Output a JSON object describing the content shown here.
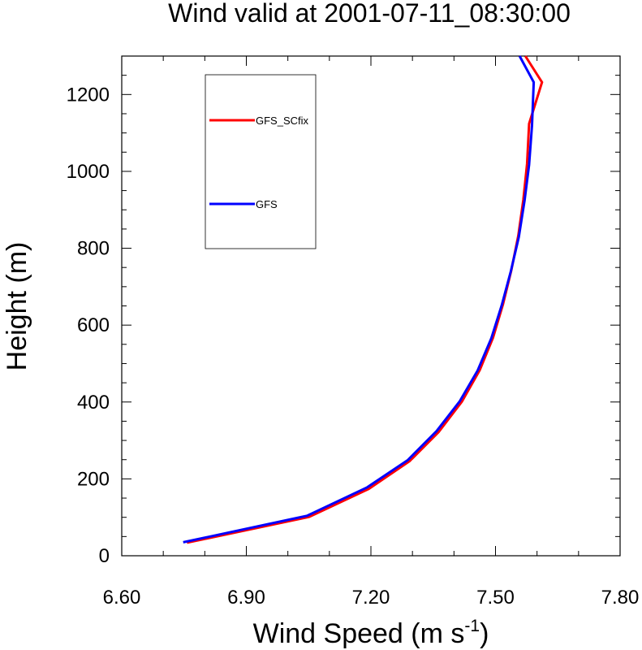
{
  "chart_data": {
    "type": "line",
    "title": "Wind valid at 2001-07-11_08:30:00",
    "xlabel_main": "Wind Speed (m s",
    "xlabel_sup": "-1",
    "xlabel_close": ")",
    "ylabel": "Height (m)",
    "xlim": [
      6.6,
      7.8
    ],
    "ylim": [
      0,
      1300
    ],
    "xticks": [
      6.6,
      6.9,
      7.2,
      7.5,
      7.8
    ],
    "xtick_labels": [
      "6.60",
      "6.90",
      "7.20",
      "7.50",
      "7.80"
    ],
    "yticks": [
      0,
      200,
      400,
      600,
      800,
      1000,
      1200
    ],
    "ytick_labels": [
      "0",
      "200",
      "400",
      "600",
      "800",
      "1000",
      "1200"
    ],
    "grid": false,
    "legend_position": "top-left",
    "series": [
      {
        "name": "GFS_SCfix",
        "color": "#ff0000",
        "points": [
          [
            6.757,
            34
          ],
          [
            7.051,
            101
          ],
          [
            7.195,
            174
          ],
          [
            7.293,
            246
          ],
          [
            7.363,
            322
          ],
          [
            7.419,
            401
          ],
          [
            7.462,
            483
          ],
          [
            7.494,
            567
          ],
          [
            7.518,
            654
          ],
          [
            7.538,
            742
          ],
          [
            7.555,
            833
          ],
          [
            7.567,
            926
          ],
          [
            7.576,
            1020
          ],
          [
            7.581,
            1124
          ],
          [
            7.612,
            1232
          ],
          [
            7.572,
            1300
          ]
        ]
      },
      {
        "name": "GFS",
        "color": "#0000ff",
        "points": [
          [
            6.748,
            35
          ],
          [
            7.046,
            104
          ],
          [
            7.191,
            178
          ],
          [
            7.289,
            249
          ],
          [
            7.358,
            324
          ],
          [
            7.414,
            402
          ],
          [
            7.457,
            482
          ],
          [
            7.49,
            566
          ],
          [
            7.515,
            652
          ],
          [
            7.537,
            740
          ],
          [
            7.556,
            829
          ],
          [
            7.57,
            924
          ],
          [
            7.581,
            1017
          ],
          [
            7.588,
            1120
          ],
          [
            7.592,
            1232
          ],
          [
            7.558,
            1300
          ]
        ]
      }
    ]
  }
}
